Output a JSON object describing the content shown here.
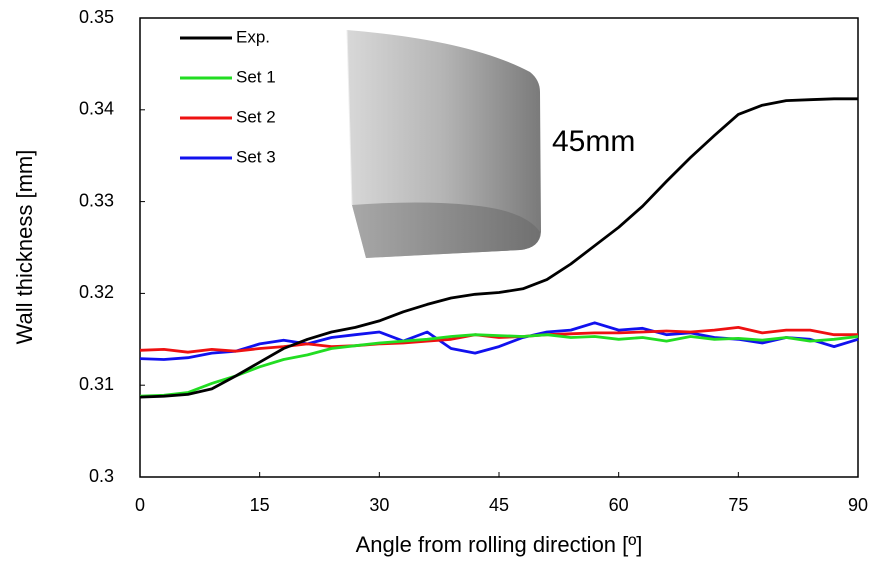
{
  "chart_data": {
    "type": "line",
    "xlabel": "Angle from rolling direction [º]",
    "ylabel": "Wall thickness [mm]",
    "annotation": "45mm",
    "x": [
      0,
      3,
      6,
      9,
      12,
      15,
      18,
      21,
      24,
      27,
      30,
      33,
      36,
      39,
      42,
      45,
      48,
      51,
      54,
      57,
      60,
      63,
      66,
      69,
      72,
      75,
      78,
      81,
      84,
      87,
      90
    ],
    "xlim": [
      0,
      90
    ],
    "xticks": [
      0,
      15,
      30,
      45,
      60,
      75,
      90
    ],
    "ylim": [
      0.3,
      0.35
    ],
    "yticks": [
      0.3,
      0.31,
      0.32,
      0.33,
      0.34,
      0.35
    ],
    "legend": "upper left",
    "series": [
      {
        "name": "Exp.",
        "color": "#000000",
        "values": [
          0.3087,
          0.3088,
          0.309,
          0.3096,
          0.311,
          0.3125,
          0.314,
          0.315,
          0.3158,
          0.3163,
          0.317,
          0.318,
          0.3188,
          0.3195,
          0.3199,
          0.3201,
          0.3205,
          0.3215,
          0.3232,
          0.3252,
          0.3272,
          0.3295,
          0.3322,
          0.3348,
          0.3372,
          0.3395,
          0.3405,
          0.341,
          0.3411,
          0.3412,
          0.3412
        ]
      },
      {
        "name": "Set 1",
        "color": "#22dd22",
        "values": [
          0.3088,
          0.3089,
          0.3092,
          0.3102,
          0.311,
          0.312,
          0.3128,
          0.3133,
          0.314,
          0.3143,
          0.3146,
          0.3148,
          0.315,
          0.3153,
          0.3155,
          0.3154,
          0.3153,
          0.3155,
          0.3152,
          0.3153,
          0.315,
          0.3152,
          0.3148,
          0.3153,
          0.315,
          0.3151,
          0.3149,
          0.3152,
          0.3148,
          0.315,
          0.3153
        ]
      },
      {
        "name": "Set 2",
        "color": "#ee1111",
        "values": [
          0.3138,
          0.3139,
          0.3136,
          0.3139,
          0.3137,
          0.314,
          0.3142,
          0.3145,
          0.3142,
          0.3143,
          0.3145,
          0.3146,
          0.3148,
          0.315,
          0.3155,
          0.3152,
          0.3153,
          0.3155,
          0.3156,
          0.3157,
          0.3157,
          0.3158,
          0.3159,
          0.3158,
          0.316,
          0.3163,
          0.3157,
          0.316,
          0.316,
          0.3155,
          0.3155
        ]
      },
      {
        "name": "Set 3",
        "color": "#1111ee",
        "values": [
          0.3129,
          0.3128,
          0.313,
          0.3135,
          0.3137,
          0.3145,
          0.3149,
          0.3145,
          0.3152,
          0.3155,
          0.3158,
          0.3148,
          0.3158,
          0.314,
          0.3135,
          0.3142,
          0.3152,
          0.3158,
          0.316,
          0.3168,
          0.316,
          0.3162,
          0.3155,
          0.3157,
          0.3152,
          0.315,
          0.3146,
          0.3152,
          0.315,
          0.3142,
          0.315
        ]
      }
    ]
  }
}
